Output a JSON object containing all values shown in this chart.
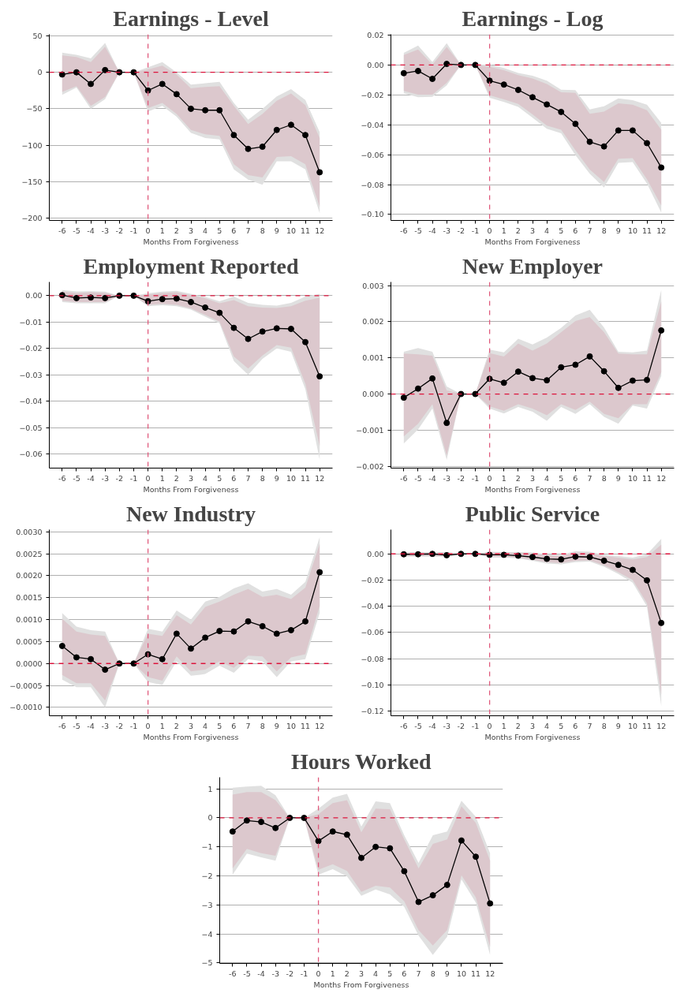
{
  "chart_data": [
    {
      "type": "line",
      "title": "Earnings - Level",
      "xlabel": "Months From Forgiveness",
      "x": [
        -6,
        -5,
        -4,
        -3,
        -2,
        -1,
        0,
        1,
        2,
        3,
        4,
        5,
        6,
        7,
        8,
        9,
        10,
        11,
        12
      ],
      "xlim": [
        -6.9,
        12.9
      ],
      "xticks": [
        -6,
        -5,
        -4,
        -3,
        -2,
        -1,
        0,
        1,
        2,
        3,
        4,
        5,
        6,
        7,
        8,
        9,
        10,
        11,
        12
      ],
      "ylim": [
        -203,
        52
      ],
      "yticks": [
        50,
        0,
        {
          "value": -50,
          "label": "−50"
        },
        {
          "value": -100,
          "label": "−100"
        },
        {
          "value": -150,
          "label": "−150"
        },
        {
          "value": -200,
          "label": "−200"
        }
      ],
      "grid": "y",
      "marker": "circle",
      "line_style": "solid",
      "ref_lines": [
        {
          "axis": "y",
          "value": 0,
          "color": "#dc143c",
          "line_style": "dashed"
        },
        {
          "axis": "x",
          "value": 0,
          "color": "#e05a7d",
          "line_style": "dashed"
        }
      ],
      "series": [
        {
          "color": "#e0e0e0",
          "values": [
            null,
            null,
            null,
            null,
            null,
            null,
            null,
            null,
            null,
            null,
            null,
            null,
            null,
            null,
            null,
            null,
            null,
            null,
            null
          ],
          "upper": [
            27,
            24,
            19,
            40,
            0,
            0,
            7,
            14,
            0,
            -17,
            -15,
            -13,
            -42,
            -65,
            -50,
            -33,
            -23,
            -38,
            -82
          ],
          "lower": [
            -31,
            -21,
            -50,
            -37,
            0,
            0,
            -54,
            -46,
            -61,
            -83,
            -90,
            -92,
            -133,
            -147,
            -154,
            -122,
            -122,
            -133,
            -193
          ]
        },
        {
          "color": "#dcc8cd",
          "values": [
            null,
            null,
            null,
            null,
            null,
            null,
            null,
            null,
            null,
            null,
            null,
            null,
            null,
            null,
            null,
            null,
            null,
            null,
            null
          ],
          "upper": [
            23,
            21,
            14,
            35,
            0,
            0,
            4,
            9,
            -3,
            -22,
            -20,
            -19,
            -46,
            -71,
            -57,
            -39,
            -29,
            -45,
            -90
          ],
          "lower": [
            -27,
            -19,
            -46,
            -34,
            0,
            0,
            -49,
            -42,
            -57,
            -79,
            -85,
            -87,
            -126,
            -141,
            -144,
            -116,
            -115,
            -126,
            -184
          ]
        },
        {
          "color": "#000000",
          "values": [
            -3,
            0,
            -16,
            3,
            0,
            0,
            -25,
            -16,
            -30,
            -50,
            -52,
            -52,
            -86,
            -105,
            -102,
            -79,
            -72,
            -86,
            -137
          ]
        }
      ]
    },
    {
      "type": "line",
      "title": "Earnings - Log",
      "xlabel": "Months From Forgiveness",
      "x": [
        -6,
        -5,
        -4,
        -3,
        -2,
        -1,
        0,
        1,
        2,
        3,
        4,
        5,
        6,
        7,
        8,
        9,
        10,
        11,
        12
      ],
      "xlim": [
        -6.9,
        12.9
      ],
      "xticks": [
        -6,
        -5,
        -4,
        -3,
        -2,
        -1,
        0,
        1,
        2,
        3,
        4,
        5,
        6,
        7,
        8,
        9,
        10,
        11,
        12
      ],
      "ylim": [
        -0.104,
        0.0205
      ],
      "yticks": [
        0.02,
        {
          "value": 0,
          "label": "0.00"
        },
        {
          "value": -0.02,
          "label": "−0.02"
        },
        {
          "value": -0.04,
          "label": "−0.04"
        },
        {
          "value": -0.06,
          "label": "−0.06"
        },
        {
          "value": -0.08,
          "label": "−0.08"
        },
        {
          "value": -0.1,
          "label": "−0.10"
        }
      ],
      "grid": "y",
      "marker": "circle",
      "line_style": "solid",
      "ref_lines": [
        {
          "axis": "y",
          "value": 0,
          "color": "#dc143c",
          "line_style": "dashed"
        },
        {
          "axis": "x",
          "value": 0,
          "color": "#e05a7d",
          "line_style": "dashed"
        }
      ],
      "series": [
        {
          "color": "#e0e0e0",
          "values": [
            null,
            null,
            null,
            null,
            null,
            null,
            null,
            null,
            null,
            null,
            null,
            null,
            null,
            null,
            null,
            null,
            null,
            null,
            null
          ],
          "upper": [
            0.0081,
            0.013,
            0.002,
            0.0146,
            0,
            0,
            0.0002,
            -0.002,
            -0.0054,
            -0.0072,
            -0.0105,
            -0.0165,
            -0.0168,
            -0.0298,
            -0.0276,
            -0.0224,
            -0.0235,
            -0.0266,
            -0.0387
          ],
          "lower": [
            -0.0189,
            -0.0216,
            -0.0213,
            -0.0137,
            0,
            0,
            -0.022,
            -0.0248,
            -0.028,
            -0.0353,
            -0.0427,
            -0.0457,
            -0.0604,
            -0.0728,
            -0.082,
            -0.0655,
            -0.0649,
            -0.0793,
            -0.0987
          ]
        },
        {
          "color": "#dcc8cd",
          "values": [
            null,
            null,
            null,
            null,
            null,
            null,
            null,
            null,
            null,
            null,
            null,
            null,
            null,
            null,
            null,
            null,
            null,
            null,
            null
          ],
          "upper": [
            0.0067,
            0.0104,
            0.0002,
            0.012,
            0,
            0,
            -0.0013,
            -0.0035,
            -0.0068,
            -0.009,
            -0.0128,
            -0.0183,
            -0.0187,
            -0.0327,
            -0.0312,
            -0.0257,
            -0.0266,
            -0.0303,
            -0.0433
          ],
          "lower": [
            -0.0174,
            -0.0198,
            -0.0198,
            -0.012,
            0,
            0,
            -0.0202,
            -0.023,
            -0.026,
            -0.033,
            -0.0405,
            -0.0433,
            -0.0571,
            -0.07,
            -0.0783,
            -0.0627,
            -0.0623,
            -0.0765,
            -0.094
          ]
        },
        {
          "color": "#000000",
          "values": [
            -0.0055,
            -0.004,
            -0.0093,
            0.0007,
            0,
            0,
            -0.0105,
            -0.0131,
            -0.0167,
            -0.0216,
            -0.0264,
            -0.0314,
            -0.0394,
            -0.0514,
            -0.0545,
            -0.0438,
            -0.0438,
            -0.0523,
            -0.0686
          ]
        }
      ]
    },
    {
      "type": "line",
      "title": "Employment Reported",
      "xlabel": "Months From Forgiveness",
      "x": [
        -6,
        -5,
        -4,
        -3,
        -2,
        -1,
        0,
        1,
        2,
        3,
        4,
        5,
        6,
        7,
        8,
        9,
        10,
        11,
        12
      ],
      "xlim": [
        -6.9,
        12.9
      ],
      "xticks": [
        -6,
        -5,
        -4,
        -3,
        -2,
        -1,
        0,
        1,
        2,
        3,
        4,
        5,
        6,
        7,
        8,
        9,
        10,
        11,
        12
      ],
      "ylim": [
        -0.0654,
        0.0052
      ],
      "yticks": [
        {
          "value": 0,
          "label": "0.00"
        },
        {
          "value": -0.01,
          "label": "−0.01"
        },
        {
          "value": -0.02,
          "label": "−0.02"
        },
        {
          "value": -0.03,
          "label": "−0.03"
        },
        {
          "value": -0.04,
          "label": "−0.04"
        },
        {
          "value": -0.05,
          "label": "−0.05"
        },
        {
          "value": -0.06,
          "label": "−0.06"
        }
      ],
      "grid": "y",
      "marker": "circle",
      "line_style": "solid",
      "ref_lines": [
        {
          "axis": "y",
          "value": 0,
          "color": "#dc143c",
          "line_style": "dashed"
        },
        {
          "axis": "x",
          "value": 0,
          "color": "#e05a7d",
          "line_style": "dashed"
        }
      ],
      "series": [
        {
          "color": "#e0e0e0",
          "values": [
            null,
            null,
            null,
            null,
            null,
            null,
            null,
            null,
            null,
            null,
            null,
            null,
            null,
            null,
            null,
            null,
            null,
            null,
            null
          ],
          "upper": [
            0.0021,
            0.0016,
            0.0017,
            0.0015,
            0,
            0,
            0.0009,
            0.0015,
            0.0018,
            0.0007,
            -0.0005,
            -0.0021,
            -0.0003,
            -0.0027,
            -0.0035,
            -0.0038,
            -0.0027,
            -0.0003,
            0.0007
          ],
          "lower": [
            -0.0024,
            -0.0029,
            -0.0029,
            -0.0029,
            0,
            0,
            -0.004,
            -0.0036,
            -0.004,
            -0.0053,
            -0.008,
            -0.0105,
            -0.0248,
            -0.03,
            -0.024,
            -0.02,
            -0.0213,
            -0.0355,
            -0.0622
          ]
        },
        {
          "color": "#dcc8cd",
          "values": [
            null,
            null,
            null,
            null,
            null,
            null,
            null,
            null,
            null,
            null,
            null,
            null,
            null,
            null,
            null,
            null,
            null,
            null,
            null
          ],
          "upper": [
            0.0015,
            0.001,
            0.0013,
            0.001,
            0,
            0,
            0.0004,
            0.001,
            0.0013,
            0.0002,
            -0.001,
            -0.0029,
            -0.0017,
            -0.004,
            -0.0045,
            -0.0047,
            -0.004,
            -0.0019,
            -0.0008
          ],
          "lower": [
            -0.0019,
            -0.0024,
            -0.0024,
            -0.0024,
            0,
            0,
            -0.0035,
            -0.0031,
            -0.0035,
            -0.0048,
            -0.0073,
            -0.0098,
            -0.0231,
            -0.0276,
            -0.0227,
            -0.0187,
            -0.0197,
            -0.0334,
            -0.057
          ]
        },
        {
          "color": "#000000",
          "values": [
            0.0002,
            -0.0009,
            -0.0007,
            -0.0009,
            0,
            0,
            -0.0021,
            -0.0013,
            -0.0011,
            -0.0024,
            -0.0045,
            -0.0065,
            -0.0122,
            -0.0164,
            -0.0136,
            -0.0124,
            -0.0126,
            -0.0176,
            -0.0306
          ]
        }
      ]
    },
    {
      "type": "line",
      "title": "New Employer",
      "xlabel": "Months From Forgiveness",
      "x": [
        -6,
        -5,
        -4,
        -3,
        -2,
        -1,
        0,
        1,
        2,
        3,
        4,
        5,
        6,
        7,
        8,
        9,
        10,
        11,
        12
      ],
      "xlim": [
        -6.9,
        12.9
      ],
      "xticks": [
        -6,
        -5,
        -4,
        -3,
        -2,
        -1,
        0,
        1,
        2,
        3,
        4,
        5,
        6,
        7,
        8,
        9,
        10,
        11,
        12
      ],
      "ylim": [
        -0.00205,
        0.0031
      ],
      "yticks": [
        0.003,
        0.002,
        0.001,
        {
          "value": 0,
          "label": "0.000"
        },
        {
          "value": -0.001,
          "label": "−0.001"
        },
        {
          "value": -0.002,
          "label": "−0.002"
        }
      ],
      "grid": "y",
      "marker": "circle",
      "line_style": "solid",
      "ref_lines": [
        {
          "axis": "y",
          "value": 0,
          "color": "#dc143c",
          "line_style": "dashed"
        },
        {
          "axis": "x",
          "value": 0,
          "color": "#e05a7d",
          "line_style": "dashed"
        }
      ],
      "series": [
        {
          "color": "#e0e0e0",
          "values": [
            null,
            null,
            null,
            null,
            null,
            null,
            null,
            null,
            null,
            null,
            null,
            null,
            null,
            null,
            null,
            null,
            null,
            null,
            null
          ],
          "upper": [
            0.00117,
            0.00127,
            0.00117,
            0.00021,
            0,
            0,
            0.00123,
            0.00115,
            0.00153,
            0.00137,
            0.00156,
            0.00183,
            0.00217,
            0.00233,
            0.00184,
            0.00117,
            0.00115,
            0.0012,
            0.00288
          ],
          "lower": [
            -0.00137,
            -0.00098,
            -0.0004,
            -0.00182,
            0,
            0,
            -0.0004,
            -0.00054,
            -0.00036,
            -0.00049,
            -0.00074,
            -0.00036,
            -0.00055,
            -0.00028,
            -0.00063,
            -0.00082,
            -0.00032,
            -0.0004,
            0.0005
          ]
        },
        {
          "color": "#dcc8cd",
          "values": [
            null,
            null,
            null,
            null,
            null,
            null,
            null,
            null,
            null,
            null,
            null,
            null,
            null,
            null,
            null,
            null,
            null,
            null,
            null
          ],
          "upper": [
            0.00112,
            0.0011,
            0.00106,
            0.0001,
            0,
            0,
            0.00113,
            0.00104,
            0.0014,
            0.0012,
            0.0014,
            0.00171,
            0.00202,
            0.00213,
            0.00171,
            0.00112,
            0.0011,
            0.0011,
            0.00256
          ],
          "lower": [
            -0.00117,
            -0.00082,
            -0.00028,
            -0.0017,
            0,
            0,
            -0.00034,
            -0.00046,
            -0.00028,
            -0.0004,
            -0.00059,
            -0.00028,
            -0.00044,
            -0.00021,
            -0.00055,
            -0.00067,
            -0.00028,
            -0.00028,
            0.0006
          ]
        },
        {
          "color": "#000000",
          "values": [
            -0.0001,
            0.00015,
            0.00043,
            -0.0008,
            0,
            0,
            0.00042,
            0.00031,
            0.00062,
            0.00044,
            0.00038,
            0.00074,
            0.00081,
            0.00104,
            0.00063,
            0.00017,
            0.00037,
            0.00039,
            0.00176
          ]
        }
      ]
    },
    {
      "type": "line",
      "title": "New Industry",
      "xlabel": "Months From Forgiveness",
      "x": [
        -6,
        -5,
        -4,
        -3,
        -2,
        -1,
        0,
        1,
        2,
        3,
        4,
        5,
        6,
        7,
        8,
        9,
        10,
        11,
        12
      ],
      "xlim": [
        -6.9,
        12.9
      ],
      "xticks": [
        -6,
        -5,
        -4,
        -3,
        -2,
        -1,
        0,
        1,
        2,
        3,
        4,
        5,
        6,
        7,
        8,
        9,
        10,
        11,
        12
      ],
      "ylim": [
        -0.00119,
        0.00305
      ],
      "yticks": [
        {
          "value": 0.003,
          "label": "0.0030"
        },
        {
          "value": 0.0025,
          "label": "0.0025"
        },
        {
          "value": 0.002,
          "label": "0.0020"
        },
        {
          "value": 0.0015,
          "label": "0.0015"
        },
        {
          "value": 0.001,
          "label": "0.0010"
        },
        {
          "value": 0.0005,
          "label": "0.0005"
        },
        {
          "value": 0,
          "label": "0.0000"
        },
        {
          "value": -0.0005,
          "label": "−0.0005"
        },
        {
          "value": -0.001,
          "label": "−0.0010"
        }
      ],
      "grid": "y",
      "marker": "circle",
      "line_style": "solid",
      "ref_lines": [
        {
          "axis": "y",
          "value": 0,
          "color": "#dc143c",
          "line_style": "dashed"
        },
        {
          "axis": "x",
          "value": 0,
          "color": "#e05a7d",
          "line_style": "dashed"
        }
      ],
      "series": [
        {
          "color": "#e0e0e0",
          "values": [
            null,
            null,
            null,
            null,
            null,
            null,
            null,
            null,
            null,
            null,
            null,
            null,
            null,
            null,
            null,
            null,
            null,
            null,
            null
          ],
          "upper": [
            0.00115,
            0.00084,
            0.00076,
            0.00073,
            0,
            0,
            0.00079,
            0.00073,
            0.00121,
            0.001,
            0.00141,
            0.00152,
            0.00171,
            0.00183,
            0.00164,
            0.0017,
            0.00157,
            0.00186,
            0.00288
          ],
          "lower": [
            -0.00037,
            -0.00054,
            -0.00054,
            -0.001,
            0,
            0,
            -0.00042,
            -0.00049,
            5e-05,
            -0.00028,
            -0.00024,
            -5e-05,
            -0.00021,
            0.0001,
            5e-05,
            -0.00031,
            5e-05,
            0.0001,
            0.00115
          ]
        },
        {
          "color": "#dcc8cd",
          "values": [
            null,
            null,
            null,
            null,
            null,
            null,
            null,
            null,
            null,
            null,
            null,
            null,
            null,
            null,
            null,
            null,
            null,
            null,
            null
          ],
          "upper": [
            0.00102,
            0.00073,
            0.00066,
            0.00063,
            0,
            0,
            0.00068,
            0.00063,
            0.0011,
            0.00089,
            0.00129,
            0.00141,
            0.00157,
            0.0017,
            0.00152,
            0.00157,
            0.00147,
            0.00173,
            0.00272
          ],
          "lower": [
            -0.00026,
            -0.00045,
            -0.00045,
            -0.00084,
            0,
            0,
            -0.00031,
            -0.00039,
            0.00016,
            -0.00018,
            -0.00014,
            5e-05,
            -0.0001,
            0.00018,
            0.00016,
            -0.00018,
            0.00014,
            0.00021,
            0.00131
          ]
        },
        {
          "color": "#000000",
          "values": [
            0.0004,
            0.00014,
            0.0001,
            -0.00014,
            0,
            0,
            0.00021,
            0.0001,
            0.00068,
            0.00034,
            0.00059,
            0.00074,
            0.00073,
            0.00096,
            0.00085,
            0.00068,
            0.00076,
            0.00096,
            0.00208
          ]
        }
      ]
    },
    {
      "type": "line",
      "title": "Public Service",
      "xlabel": "Months From Forgiveness",
      "x": [
        -6,
        -5,
        -4,
        -3,
        -2,
        -1,
        0,
        1,
        2,
        3,
        4,
        5,
        6,
        7,
        8,
        9,
        10,
        11,
        12
      ],
      "xlim": [
        -6.9,
        12.9
      ],
      "xticks": [
        -6,
        -5,
        -4,
        -3,
        -2,
        -1,
        0,
        1,
        2,
        3,
        4,
        5,
        6,
        7,
        8,
        9,
        10,
        11,
        12
      ],
      "ylim": [
        -0.1235,
        0.0185
      ],
      "yticks": [
        {
          "value": 0,
          "label": "0.00"
        },
        {
          "value": -0.02,
          "label": "−0.02"
        },
        {
          "value": -0.04,
          "label": "−0.04"
        },
        {
          "value": -0.06,
          "label": "−0.06"
        },
        {
          "value": -0.08,
          "label": "−0.08"
        },
        {
          "value": -0.1,
          "label": "−0.10"
        },
        {
          "value": -0.12,
          "label": "−0.12"
        }
      ],
      "grid": "y",
      "marker": "circle",
      "line_style": "solid",
      "ref_lines": [
        {
          "axis": "y",
          "value": 0,
          "color": "#dc143c",
          "line_style": "dashed"
        },
        {
          "axis": "x",
          "value": 0,
          "color": "#e05a7d",
          "line_style": "dashed"
        }
      ],
      "series": [
        {
          "color": "#e0e0e0",
          "values": [
            null,
            null,
            null,
            null,
            null,
            null,
            null,
            null,
            null,
            null,
            null,
            null,
            null,
            null,
            null,
            null,
            null,
            null,
            null
          ],
          "upper": [
            0.0014,
            0.0014,
            0.0014,
            0.0014,
            0,
            0,
            0.0017,
            0.0014,
            0.0014,
            0.001,
            -0.0003,
            -0.0007,
            0.0021,
            0.0017,
            -0.0007,
            -0.0017,
            -0.0028,
            -0.0003,
            0.0115
          ],
          "lower": [
            -0.0021,
            -0.0021,
            -0.0021,
            -0.0024,
            0,
            0,
            -0.0028,
            -0.0028,
            -0.0035,
            -0.0052,
            -0.0073,
            -0.008,
            -0.0063,
            -0.0059,
            -0.0098,
            -0.0153,
            -0.022,
            -0.0401,
            -0.1161
          ]
        },
        {
          "color": "#dcc8cd",
          "values": [
            null,
            null,
            null,
            null,
            null,
            null,
            null,
            null,
            null,
            null,
            null,
            null,
            null,
            null,
            null,
            null,
            null,
            null,
            null
          ],
          "upper": [
            0.0007,
            0.0007,
            0.0007,
            0.0007,
            0,
            0,
            0.001,
            0.0007,
            0.0007,
            0.0003,
            -0.001,
            -0.0017,
            0.001,
            0.0007,
            -0.0017,
            -0.0028,
            -0.0042,
            -0.0024,
            0.007
          ],
          "lower": [
            -0.0014,
            -0.0014,
            -0.0014,
            -0.0017,
            0,
            0,
            -0.0021,
            -0.0021,
            -0.0028,
            -0.0045,
            -0.0063,
            -0.007,
            -0.0052,
            -0.0049,
            -0.0087,
            -0.014,
            -0.0199,
            -0.0377,
            -0.1074
          ]
        },
        {
          "color": "#000000",
          "values": [
            -0.0003,
            -0.0003,
            0,
            -0.001,
            0,
            0,
            -0.0007,
            -0.0007,
            -0.0014,
            -0.0024,
            -0.0038,
            -0.0042,
            -0.0021,
            -0.0024,
            -0.0052,
            -0.0084,
            -0.0122,
            -0.0202,
            -0.0527
          ]
        }
      ]
    },
    {
      "type": "line",
      "title": "Hours Worked",
      "xlabel": "Months From Forgiveness",
      "x": [
        -6,
        -5,
        -4,
        -3,
        -2,
        -1,
        0,
        1,
        2,
        3,
        4,
        5,
        6,
        7,
        8,
        9,
        10,
        11,
        12
      ],
      "xlim": [
        -6.9,
        12.9
      ],
      "xticks": [
        -6,
        -5,
        -4,
        -3,
        -2,
        -1,
        0,
        1,
        2,
        3,
        4,
        5,
        6,
        7,
        8,
        9,
        10,
        11,
        12
      ],
      "ylim": [
        -5.02,
        1.4
      ],
      "yticks": [
        1,
        0,
        {
          "value": -1,
          "label": "−1"
        },
        {
          "value": -2,
          "label": "−2"
        },
        {
          "value": -3,
          "label": "−3"
        },
        {
          "value": -4,
          "label": "−4"
        },
        {
          "value": -5,
          "label": "−5"
        }
      ],
      "grid": "y",
      "marker": "circle",
      "line_style": "solid",
      "ref_lines": [
        {
          "axis": "y",
          "value": 0,
          "color": "#dc143c",
          "line_style": "dashed"
        },
        {
          "axis": "x",
          "value": 0,
          "color": "#e05a7d",
          "line_style": "dashed"
        }
      ],
      "series": [
        {
          "color": "#e0e0e0",
          "values": [
            null,
            null,
            null,
            null,
            null,
            null,
            null,
            null,
            null,
            null,
            null,
            null,
            null,
            null,
            null,
            null,
            null,
            null,
            null
          ],
          "upper": [
            1.04,
            1.08,
            1.11,
            0.78,
            0,
            0,
            0.32,
            0.7,
            0.83,
            -0.3,
            0.57,
            0.51,
            -0.6,
            -1.55,
            -0.6,
            -0.47,
            0.59,
            0.04,
            -1.22
          ],
          "lower": [
            -1.96,
            -1.23,
            -1.36,
            -1.48,
            0,
            0,
            -1.96,
            -1.77,
            -2.02,
            -2.69,
            -2.47,
            -2.64,
            -3.07,
            -4.06,
            -4.73,
            -4.1,
            -2.12,
            -2.92,
            -4.73
          ]
        },
        {
          "color": "#dcc8cd",
          "values": [
            null,
            null,
            null,
            null,
            null,
            null,
            null,
            null,
            null,
            null,
            null,
            null,
            null,
            null,
            null,
            null,
            null,
            null,
            null
          ],
          "upper": [
            0.8,
            0.89,
            0.89,
            0.61,
            0,
            0,
            0.13,
            0.51,
            0.61,
            -0.5,
            0.32,
            0.3,
            -0.74,
            -1.74,
            -0.9,
            -0.74,
            0.4,
            -0.17,
            -1.48
          ],
          "lower": [
            -1.74,
            -1.07,
            -1.22,
            -1.31,
            0,
            0,
            -1.79,
            -1.6,
            -1.83,
            -2.55,
            -2.34,
            -2.4,
            -2.88,
            -3.87,
            -4.4,
            -3.87,
            -1.98,
            -2.74,
            -4.44
          ]
        },
        {
          "color": "#000000",
          "values": [
            -0.47,
            -0.09,
            -0.14,
            -0.35,
            0,
            0,
            -0.8,
            -0.47,
            -0.58,
            -1.38,
            -1.0,
            -1.05,
            -1.84,
            -2.9,
            -2.67,
            -2.31,
            -0.78,
            -1.34,
            -2.95
          ]
        }
      ]
    }
  ]
}
